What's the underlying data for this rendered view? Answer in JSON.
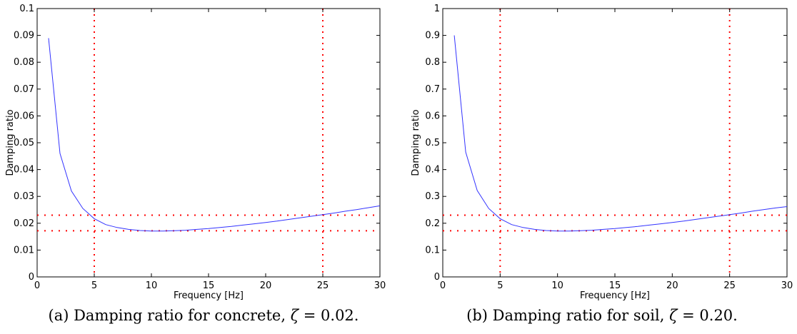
{
  "chart_data": [
    {
      "type": "line",
      "xlabel": "Frequency [Hz]",
      "ylabel": "Damping ratio",
      "xlim": [
        0,
        30
      ],
      "ylim": [
        0,
        0.1
      ],
      "xticks": [
        0,
        5,
        10,
        15,
        20,
        25,
        30
      ],
      "yticks": [
        0,
        0.01,
        0.02,
        0.03,
        0.04,
        0.05,
        0.06,
        0.07,
        0.08,
        0.09,
        0.1
      ],
      "ytick_labels": [
        "0",
        "0.01",
        "0.02",
        "0.03",
        "0.04",
        "0.05",
        "0.06",
        "0.07",
        "0.08",
        "0.09",
        "0.1"
      ],
      "series": [
        {
          "color": "#3333ff",
          "x": [
            1,
            2,
            3,
            4,
            5,
            6,
            7,
            8,
            9,
            10,
            11,
            12,
            13,
            14,
            15,
            16,
            17,
            18,
            19,
            20,
            21,
            22,
            23,
            24,
            25,
            26,
            27,
            28,
            29,
            30
          ],
          "values": [
            0.089,
            0.046,
            0.032,
            0.0255,
            0.0217,
            0.0195,
            0.0184,
            0.0177,
            0.0173,
            0.0171,
            0.0171,
            0.0172,
            0.0174,
            0.0177,
            0.018,
            0.0184,
            0.0188,
            0.0193,
            0.0198,
            0.0203,
            0.0208,
            0.0214,
            0.022,
            0.0226,
            0.0232,
            0.0238,
            0.0245,
            0.0251,
            0.0258,
            0.0265
          ]
        }
      ],
      "reference_lines": {
        "color": "#ff0000",
        "style": "dotted",
        "vertical_x": [
          5,
          25
        ],
        "horizontal_y": [
          0.023,
          0.0172
        ]
      },
      "grid": false
    },
    {
      "type": "line",
      "xlabel": "Frequency [Hz]",
      "ylabel": "Damping ratio",
      "xlim": [
        0,
        30
      ],
      "ylim": [
        0,
        1
      ],
      "xticks": [
        0,
        5,
        10,
        15,
        20,
        25,
        30
      ],
      "yticks": [
        0,
        0.1,
        0.2,
        0.3,
        0.4,
        0.5,
        0.6,
        0.7,
        0.8,
        0.9,
        1
      ],
      "ytick_labels": [
        "0",
        "0.1",
        "0.2",
        "0.3",
        "0.4",
        "0.5",
        "0.6",
        "0.7",
        "0.8",
        "0.9",
        "1"
      ],
      "series": [
        {
          "color": "#3333ff",
          "x": [
            1,
            2,
            3,
            4,
            5,
            6,
            7,
            8,
            9,
            10,
            11,
            12,
            13,
            14,
            15,
            16,
            17,
            18,
            19,
            20,
            21,
            22,
            23,
            24,
            25,
            26,
            27,
            28,
            29,
            30
          ],
          "values": [
            0.9,
            0.465,
            0.322,
            0.255,
            0.217,
            0.195,
            0.184,
            0.177,
            0.173,
            0.171,
            0.171,
            0.172,
            0.174,
            0.177,
            0.18,
            0.184,
            0.188,
            0.193,
            0.198,
            0.203,
            0.208,
            0.214,
            0.22,
            0.226,
            0.232,
            0.238,
            0.245,
            0.251,
            0.257,
            0.262
          ]
        }
      ],
      "reference_lines": {
        "color": "#ff0000",
        "style": "dotted",
        "vertical_x": [
          5,
          25
        ],
        "horizontal_y": [
          0.23,
          0.172
        ]
      },
      "grid": false
    }
  ],
  "captions": [
    {
      "label": "(a) Damping ratio for concrete, ",
      "symbol": "ζ",
      "value": " = 0.02."
    },
    {
      "label": "(b) Damping ratio for soil, ",
      "symbol": "ζ",
      "value": " = 0.20."
    }
  ]
}
